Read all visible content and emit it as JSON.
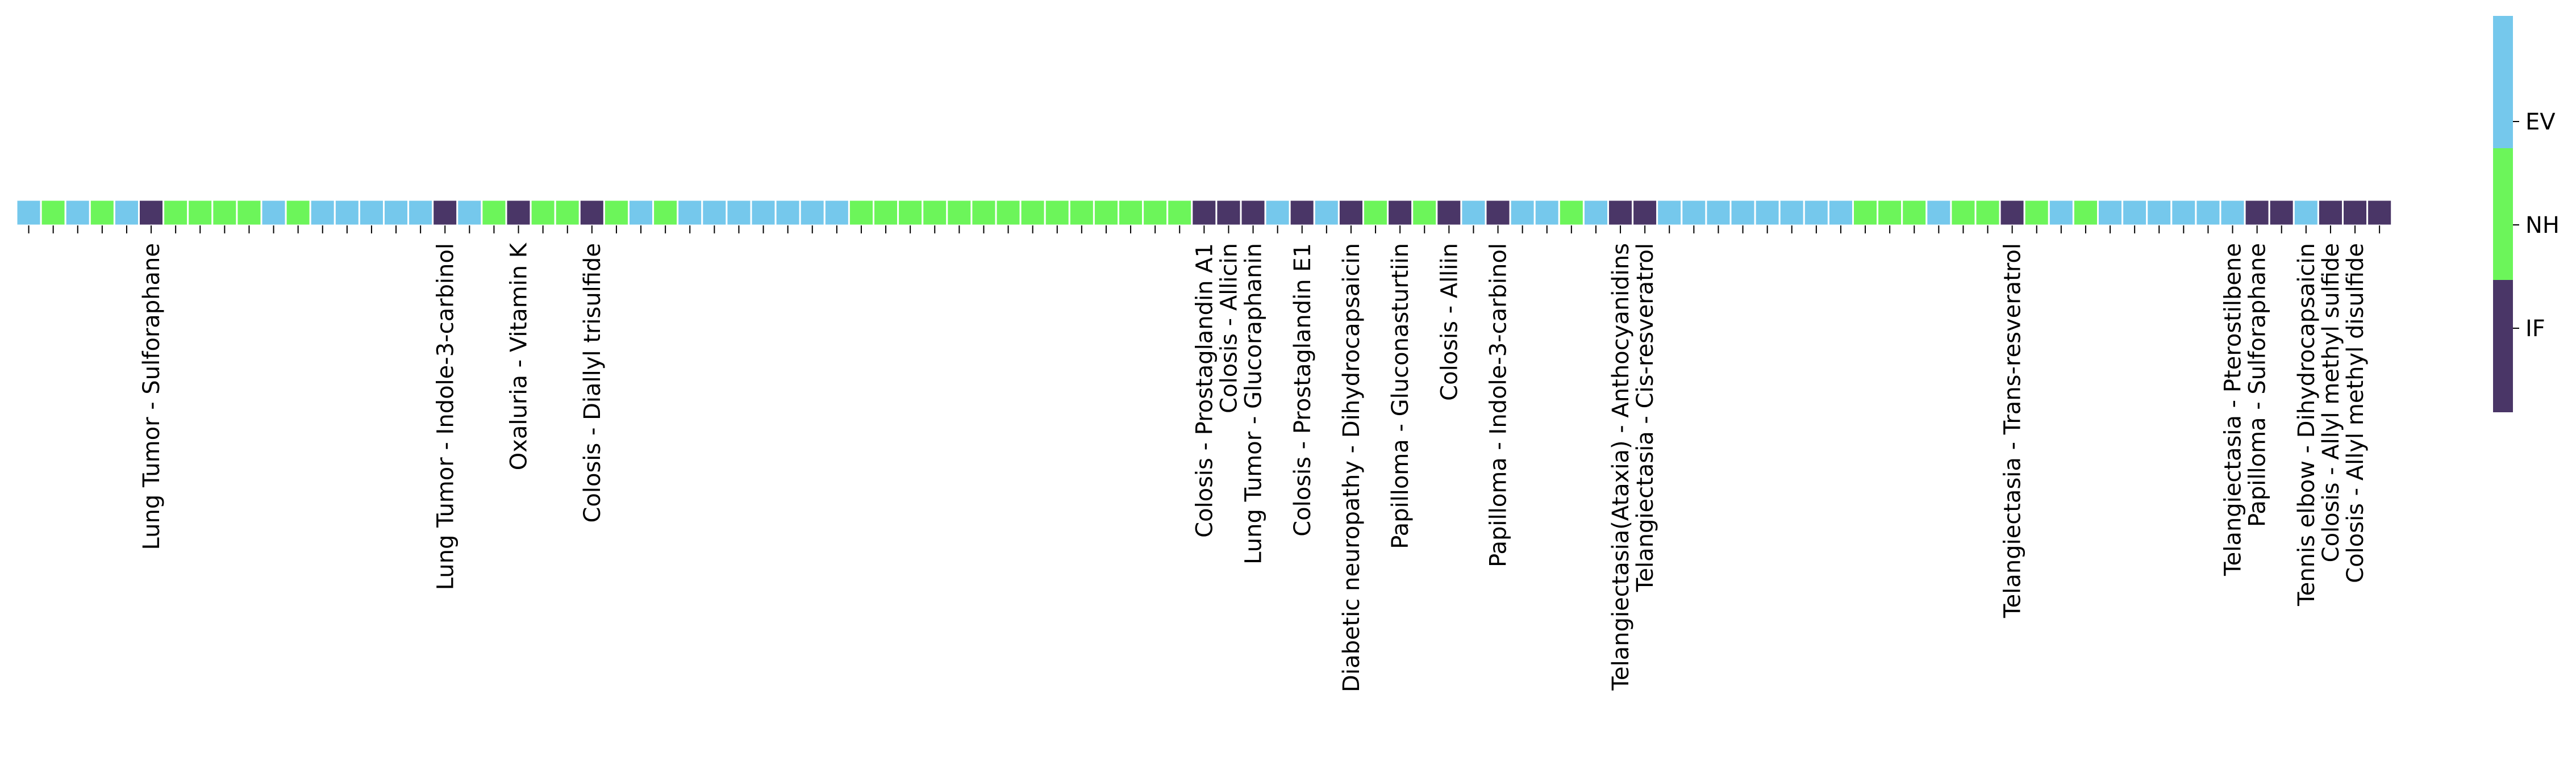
{
  "chart_data": {
    "type": "heatmap",
    "title": "",
    "xlabel": "",
    "ylabel": "",
    "colors": {
      "EV": "#75C8EC",
      "NH": "#6CF55A",
      "IF": "#4A3667"
    },
    "colorbar": {
      "labels": [
        "EV",
        "NH",
        "IF"
      ],
      "order_top_to_bottom": [
        "EV",
        "NH",
        "IF"
      ]
    },
    "cells": [
      "EV",
      "NH",
      "EV",
      "NH",
      "EV",
      "IF",
      "NH",
      "NH",
      "NH",
      "NH",
      "EV",
      "NH",
      "EV",
      "EV",
      "EV",
      "EV",
      "EV",
      "IF",
      "EV",
      "NH",
      "IF",
      "NH",
      "NH",
      "IF",
      "NH",
      "EV",
      "NH",
      "EV",
      "EV",
      "EV",
      "EV",
      "EV",
      "EV",
      "EV",
      "NH",
      "NH",
      "NH",
      "NH",
      "NH",
      "NH",
      "NH",
      "NH",
      "NH",
      "NH",
      "NH",
      "NH",
      "NH",
      "NH",
      "IF",
      "IF",
      "IF",
      "EV",
      "IF",
      "EV",
      "IF",
      "NH",
      "IF",
      "NH",
      "IF",
      "EV",
      "IF",
      "EV",
      "EV",
      "NH",
      "EV",
      "IF",
      "IF",
      "EV",
      "EV",
      "EV",
      "EV",
      "EV",
      "EV",
      "EV",
      "EV",
      "NH",
      "NH",
      "NH",
      "EV",
      "NH",
      "NH",
      "IF",
      "NH",
      "EV",
      "NH",
      "EV",
      "EV",
      "EV",
      "EV",
      "EV",
      "EV",
      "IF",
      "IF",
      "EV",
      "IF",
      "IF",
      "IF"
    ],
    "tick_labels": [
      {
        "index": 5,
        "label": "Lung Tumor - Sulforaphane"
      },
      {
        "index": 17,
        "label": "Lung Tumor - Indole-3-carbinol"
      },
      {
        "index": 20,
        "label": "Oxaluria - Vitamin K"
      },
      {
        "index": 23,
        "label": "Colosis - Diallyl trisulfide"
      },
      {
        "index": 48,
        "label": "Colosis - Prostaglandin A1"
      },
      {
        "index": 49,
        "label": "Colosis - Allicin"
      },
      {
        "index": 50,
        "label": "Lung Tumor - Glucoraphanin"
      },
      {
        "index": 52,
        "label": "Colosis - Prostaglandin E1"
      },
      {
        "index": 54,
        "label": "Diabetic neuropathy - Dihydrocapsaicin"
      },
      {
        "index": 56,
        "label": "Papilloma - Gluconasturtiin"
      },
      {
        "index": 58,
        "label": "Colosis - Alliin"
      },
      {
        "index": 60,
        "label": "Papilloma - Indole-3-carbinol"
      },
      {
        "index": 65,
        "label": "Telangiectasia(Ataxia) - Anthocyanidins"
      },
      {
        "index": 66,
        "label": "Telangiectasia - Cis-resveratrol"
      },
      {
        "index": 81,
        "label": "Telangiectasia - Trans-resveratrol"
      },
      {
        "index": 90,
        "label": "Telangiectasia - Pterostilbene"
      },
      {
        "index": 91,
        "label": "Papilloma - Sulforaphane"
      },
      {
        "index": 93,
        "label": "Tennis elbow - Dihydrocapsaicin"
      },
      {
        "index": 94,
        "label": "Colosis - Allyl methyl sulfide"
      },
      {
        "index": 95,
        "label": "Colosis - Allyl methyl disulfide"
      }
    ]
  }
}
